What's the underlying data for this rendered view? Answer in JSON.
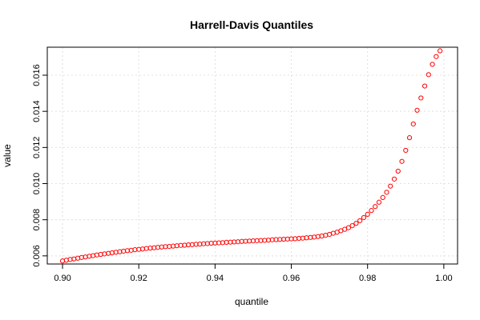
{
  "chart_data": {
    "type": "scatter",
    "title": "Harrell-Davis Quantiles",
    "xlabel": "quantile",
    "ylabel": "value",
    "xlim": [
      0.9,
      1.0
    ],
    "ylim": [
      0.00555,
      0.01755
    ],
    "xticks": [
      0.9,
      0.92,
      0.94,
      0.96,
      0.98,
      1.0
    ],
    "xtick_labels": [
      "0.90",
      "0.92",
      "0.94",
      "0.96",
      "0.98",
      "1.00"
    ],
    "yticks": [
      0.006,
      0.008,
      0.01,
      0.012,
      0.014,
      0.016
    ],
    "ytick_labels": [
      "0.006",
      "0.008",
      "0.010",
      "0.012",
      "0.014",
      "0.016"
    ],
    "grid": true,
    "marker_color": "#ff0000",
    "x": [
      0.9,
      0.901,
      0.902,
      0.903,
      0.904,
      0.905,
      0.906,
      0.907,
      0.908,
      0.909,
      0.91,
      0.911,
      0.912,
      0.913,
      0.914,
      0.915,
      0.916,
      0.917,
      0.918,
      0.919,
      0.92,
      0.921,
      0.922,
      0.923,
      0.924,
      0.925,
      0.926,
      0.927,
      0.928,
      0.929,
      0.93,
      0.931,
      0.932,
      0.933,
      0.934,
      0.935,
      0.936,
      0.937,
      0.938,
      0.939,
      0.94,
      0.941,
      0.942,
      0.943,
      0.944,
      0.945,
      0.946,
      0.947,
      0.948,
      0.949,
      0.95,
      0.951,
      0.952,
      0.953,
      0.954,
      0.955,
      0.956,
      0.957,
      0.958,
      0.959,
      0.96,
      0.961,
      0.962,
      0.963,
      0.964,
      0.965,
      0.966,
      0.967,
      0.968,
      0.969,
      0.97,
      0.971,
      0.972,
      0.973,
      0.974,
      0.975,
      0.976,
      0.977,
      0.978,
      0.979,
      0.98,
      0.981,
      0.982,
      0.983,
      0.984,
      0.985,
      0.986,
      0.987,
      0.988,
      0.989,
      0.99,
      0.991,
      0.992,
      0.993,
      0.994,
      0.995,
      0.996,
      0.997,
      0.998,
      0.999
    ],
    "y": [
      0.00572,
      0.00576,
      0.0058,
      0.00583,
      0.00587,
      0.00591,
      0.00594,
      0.00598,
      0.00601,
      0.00605,
      0.00608,
      0.00611,
      0.00614,
      0.00617,
      0.0062,
      0.00623,
      0.00626,
      0.00629,
      0.00631,
      0.00634,
      0.00636,
      0.00638,
      0.00641,
      0.00643,
      0.00645,
      0.00647,
      0.00649,
      0.00651,
      0.00652,
      0.00654,
      0.00656,
      0.00658,
      0.00659,
      0.00661,
      0.00662,
      0.00664,
      0.00665,
      0.00667,
      0.00668,
      0.0067,
      0.00671,
      0.00672,
      0.00673,
      0.00675,
      0.00676,
      0.00677,
      0.00678,
      0.0068,
      0.00681,
      0.00682,
      0.00683,
      0.00684,
      0.00685,
      0.00686,
      0.00687,
      0.00689,
      0.0069,
      0.00691,
      0.00692,
      0.00693,
      0.00694,
      0.00695,
      0.00697,
      0.00698,
      0.007,
      0.00702,
      0.00704,
      0.00707,
      0.0071,
      0.00714,
      0.00719,
      0.00725,
      0.00731,
      0.00739,
      0.00747,
      0.00756,
      0.00767,
      0.0078,
      0.00795,
      0.00812,
      0.0083,
      0.00851,
      0.00873,
      0.00897,
      0.00923,
      0.00952,
      0.00986,
      0.01025,
      0.01069,
      0.01123,
      0.01184,
      0.01254,
      0.0133,
      0.01406,
      0.01474,
      0.0154,
      0.01603,
      0.0166,
      0.01703,
      0.01735
    ]
  }
}
